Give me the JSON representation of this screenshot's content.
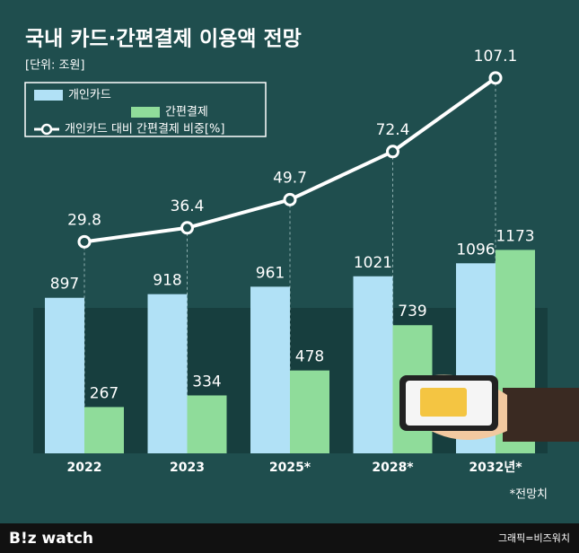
{
  "chart_data": {
    "type": "bar",
    "title": "국내 카드·간편결제 이용액 전망",
    "subtitle": "[단위: 조원]",
    "categories": [
      "2022",
      "2023",
      "2025*",
      "2028*",
      "2032년*"
    ],
    "series": [
      {
        "name": "개인카드",
        "color": "#b1e1f6",
        "values": [
          897,
          918,
          961,
          1021,
          1096
        ]
      },
      {
        "name": "간편결제",
        "color": "#8fdc9a",
        "values": [
          267,
          334,
          478,
          739,
          1173
        ]
      },
      {
        "name": "개인카드 대비 간편결제 비중[%]",
        "color": "#ffffff",
        "type": "line",
        "axis": "y2",
        "values": [
          29.8,
          36.4,
          49.7,
          72.4,
          107.1
        ]
      }
    ],
    "ylim": [
      0,
      2200
    ],
    "y2lim": [
      -70,
      110
    ],
    "note": "*전망치",
    "source": "그래픽=비즈워치",
    "brand": "B!z watch"
  }
}
